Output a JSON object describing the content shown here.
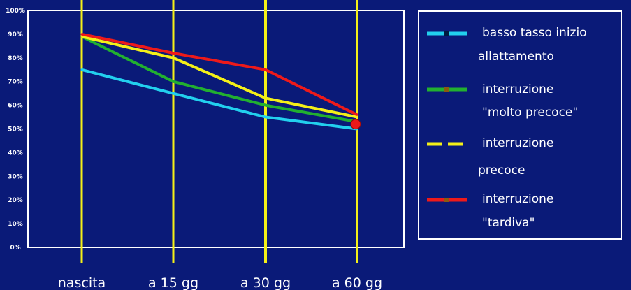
{
  "chart_data": {
    "type": "line",
    "categories": [
      "nascita",
      "a 15 gg",
      "a 30 gg",
      "a 60 gg"
    ],
    "ylim": [
      0,
      100
    ],
    "yticks": [
      "0%",
      "10%",
      "20%",
      "30%",
      "40%",
      "50%",
      "60%",
      "70%",
      "80%",
      "90%",
      "100%"
    ],
    "grid": false,
    "legend_position": "right",
    "series": [
      {
        "name_lines": [
          "basso tasso inizio",
          "allattamento"
        ],
        "color": "#22d0ee",
        "dash": "solid",
        "values": [
          75,
          65,
          55,
          50
        ]
      },
      {
        "name_lines": [
          "interruzione",
          "\"molto precoce\""
        ],
        "color": "#22b030",
        "dash": "solid",
        "values": [
          89,
          70,
          60,
          53
        ]
      },
      {
        "name_lines": [
          "interruzione",
          "precoce"
        ],
        "color": "#f4f018",
        "dash": "dashed",
        "values": [
          89,
          80,
          63,
          55
        ]
      },
      {
        "name_lines": [
          "interruzione",
          "\"tardiva\""
        ],
        "color": "#ee1a1a",
        "dash": "solid",
        "values": [
          90,
          82,
          75,
          56
        ]
      }
    ],
    "endpoint_marker_color": "#ee1a1a",
    "vline_color": "#f4f018",
    "frame_color": "#ffffff"
  }
}
